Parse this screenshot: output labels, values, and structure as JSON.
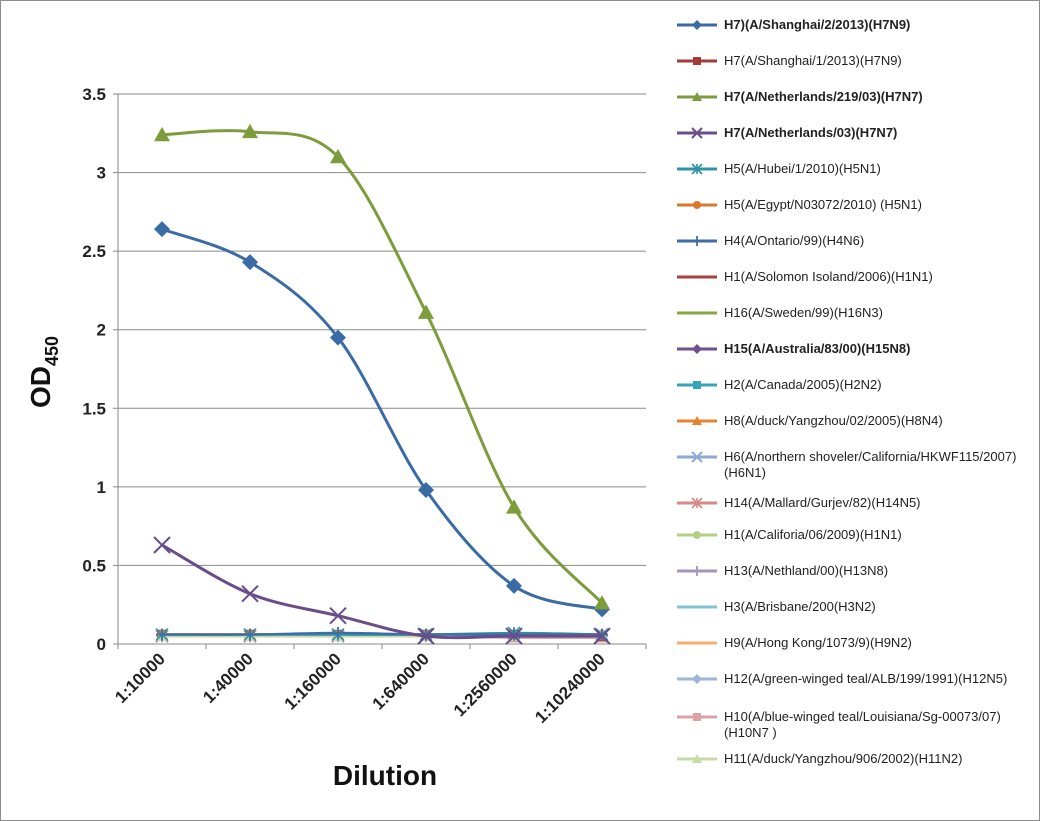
{
  "chart_data": {
    "type": "line",
    "title": "",
    "xlabel": "Dilution",
    "ylabel_main": "OD",
    "ylabel_sub": "450",
    "ylim": [
      0,
      3.5
    ],
    "yticks": [
      "0",
      "0.5",
      "1",
      "1.5",
      "2",
      "2.5",
      "3",
      "3.5"
    ],
    "grid": true,
    "legend_position": "right",
    "categories": [
      "1:10000",
      "1:40000",
      "1:160000",
      "1:640000",
      "1:2560000",
      "1:10240000"
    ],
    "series": [
      {
        "name": "H7)(A/Shanghai/2/2013)(H7N9)",
        "color": "#3A6BA5",
        "marker": "diamond",
        "bold": true,
        "values": [
          2.64,
          2.43,
          1.95,
          0.98,
          0.37,
          0.22
        ]
      },
      {
        "name": "H7(A/Shanghai/1/2013)(H7N9)",
        "color": "#A33B38",
        "marker": "square",
        "bold": false,
        "values": [
          0.06,
          0.06,
          0.06,
          0.06,
          0.06,
          0.05
        ]
      },
      {
        "name": "H7(A/Netherlands/219/03)(H7N7)",
        "color": "#7D9C3C",
        "marker": "triangle",
        "bold": true,
        "values": [
          3.24,
          3.26,
          3.1,
          2.11,
          0.87,
          0.26
        ]
      },
      {
        "name": "H7(A/Netherlands/03)(H7N7)",
        "color": "#6A4C8B",
        "marker": "x",
        "bold": true,
        "values": [
          0.63,
          0.32,
          0.18,
          0.05,
          0.05,
          0.05
        ]
      },
      {
        "name": "H5(A/Hubei/1/2010)(H5N1)",
        "color": "#2F93A8",
        "marker": "star",
        "bold": false,
        "values": [
          0.06,
          0.06,
          0.06,
          0.06,
          0.07,
          0.06
        ]
      },
      {
        "name": "H5(A/Egypt/N03072/2010) (H5N1)",
        "color": "#D9772B",
        "marker": "circle",
        "bold": false,
        "values": [
          0.06,
          0.06,
          0.06,
          0.06,
          0.06,
          0.06
        ]
      },
      {
        "name": "H4(A/Ontario/99)(H4N6)",
        "color": "#3E6EA8",
        "marker": "plus",
        "bold": false,
        "values": [
          0.06,
          0.06,
          0.07,
          0.06,
          0.06,
          0.06
        ]
      },
      {
        "name": "H1(A/Solomon Isoland/2006)(H1N1)",
        "color": "#A8423E",
        "marker": "none",
        "bold": false,
        "values": [
          0.06,
          0.06,
          0.06,
          0.06,
          0.06,
          0.06
        ]
      },
      {
        "name": "H16(A/Sweden/99)(H16N3)",
        "color": "#86A845",
        "marker": "none",
        "bold": false,
        "values": [
          0.06,
          0.06,
          0.06,
          0.06,
          0.06,
          0.06
        ]
      },
      {
        "name": "H15(A/Australia/83/00)(H15N8)",
        "color": "#6F518F",
        "marker": "diamond",
        "bold": true,
        "values": [
          0.05,
          0.05,
          0.05,
          0.05,
          0.05,
          0.05
        ]
      },
      {
        "name": "H2(A/Canada/2005)(H2N2)",
        "color": "#35A3BC",
        "marker": "square",
        "bold": false,
        "values": [
          0.05,
          0.05,
          0.05,
          0.05,
          0.05,
          0.05
        ]
      },
      {
        "name": "H8(A/duck/Yangzhou/02/2005)(H8N4)",
        "color": "#E8832F",
        "marker": "triangle",
        "bold": false,
        "values": [
          0.06,
          0.06,
          0.06,
          0.06,
          0.06,
          0.06
        ]
      },
      {
        "name": "H6(A/northern shoveler/California/HKWF115/2007)(H6N1)",
        "color": "#8DA9D6",
        "marker": "x",
        "bold": false,
        "values": [
          0.05,
          0.05,
          0.05,
          0.05,
          0.05,
          0.05
        ]
      },
      {
        "name": "H14(A/Mallard/Gurjev/82)(H14N5)",
        "color": "#D58A88",
        "marker": "star",
        "bold": false,
        "values": [
          0.05,
          0.05,
          0.05,
          0.05,
          0.05,
          0.05
        ]
      },
      {
        "name": "H1(A/Califoria/06/2009)(H1N1)",
        "color": "#B4CF84",
        "marker": "circle",
        "bold": false,
        "values": [
          0.05,
          0.05,
          0.05,
          0.05,
          0.05,
          0.05
        ]
      },
      {
        "name": "H13(A/Nethland/00)(H13N8)",
        "color": "#A595BD",
        "marker": "plus",
        "bold": false,
        "values": [
          0.05,
          0.05,
          0.05,
          0.05,
          0.05,
          0.05
        ]
      },
      {
        "name": "H3(A/Brisbane/200(H3N2)",
        "color": "#7FC3D4",
        "marker": "none",
        "bold": false,
        "values": [
          0.05,
          0.05,
          0.05,
          0.05,
          0.05,
          0.05
        ]
      },
      {
        "name": "H9(A/Hong Kong/1073/9)(H9N2)",
        "color": "#F6AE6E",
        "marker": "none",
        "bold": false,
        "values": [
          0.05,
          0.05,
          0.05,
          0.05,
          0.05,
          0.05
        ]
      },
      {
        "name": "H12(A/green-winged teal/ALB/199/1991)(H12N5)",
        "color": "#9DB6DA",
        "marker": "diamond",
        "bold": false,
        "values": [
          0.05,
          0.05,
          0.05,
          0.05,
          0.05,
          0.05
        ]
      },
      {
        "name": "H10(A/blue-winged teal/Louisiana/Sg-00073/07)(H10N7 )",
        "color": "#DBA2A1",
        "marker": "square",
        "bold": false,
        "values": [
          0.05,
          0.05,
          0.05,
          0.05,
          0.04,
          0.04
        ]
      },
      {
        "name": "H11(A/duck/Yangzhou/906/2002)(H11N2)",
        "color": "#C7DBA6",
        "marker": "triangle",
        "bold": false,
        "values": [
          0.05,
          0.05,
          0.05,
          0.05,
          0.05,
          0.06
        ]
      }
    ]
  }
}
